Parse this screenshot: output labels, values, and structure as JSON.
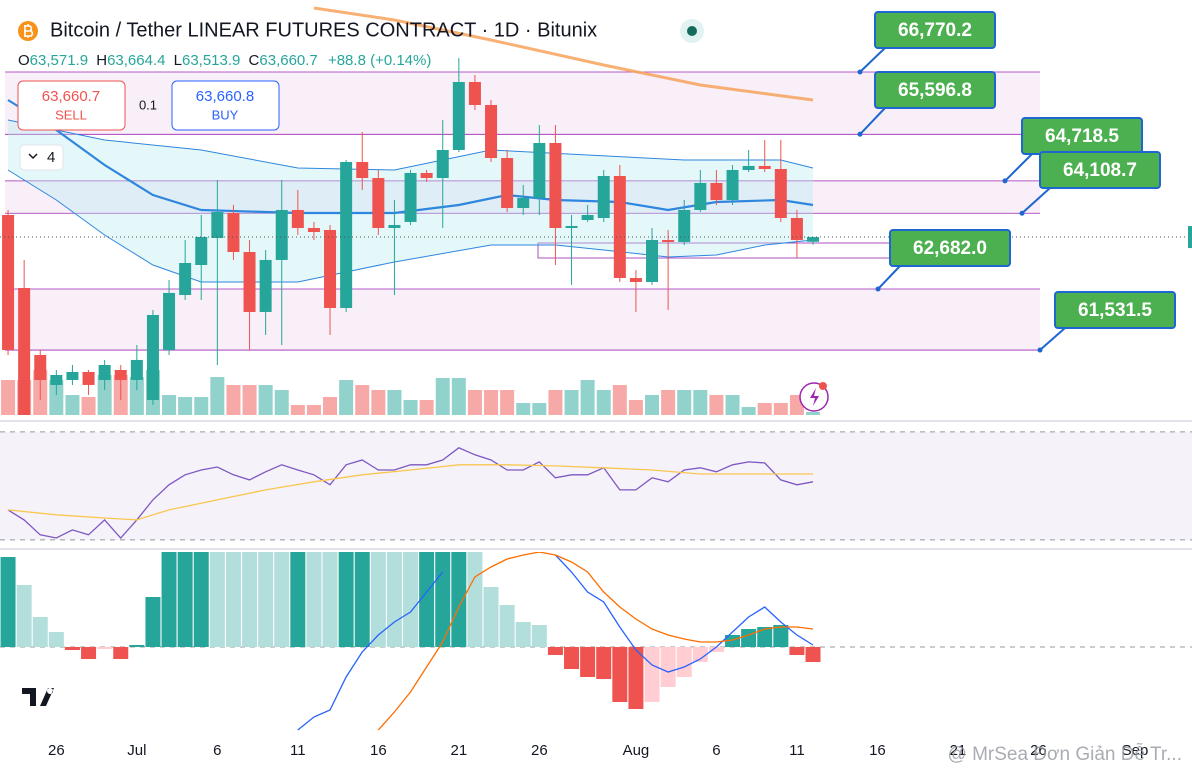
{
  "chart_data": [
    {
      "type": "candlestick",
      "title": "Bitcoin / Tether LINEAR FUTURES CONTRACT · 1D · Bitunix",
      "ohlc_labels": [
        "O",
        "H",
        "L",
        "C"
      ],
      "ohlc_value_labels": [
        "63,571.9",
        "63,664.4",
        "63,513.9",
        "63,660.7"
      ],
      "change_label": "+88.8 (+0.14%)",
      "order_panel": {
        "sell_price": "63,660.7",
        "sell": "SELL",
        "quantity": "0.1",
        "buy_price": "63,660.8",
        "buy": "BUY"
      },
      "indicator_count": 4,
      "up_color": "#26a69a",
      "down_color": "#ef5350",
      "xlim": [
        -0.5,
        73.54
      ],
      "ylim": [
        60308,
        68127
      ],
      "xticks": [
        {
          "value": 3,
          "label": "26"
        },
        {
          "value": 8,
          "label": "Jul"
        },
        {
          "value": 13,
          "label": "6"
        },
        {
          "value": 18,
          "label": "11"
        },
        {
          "value": 23,
          "label": "16"
        },
        {
          "value": 28,
          "label": "21"
        },
        {
          "value": 33,
          "label": "26"
        },
        {
          "value": 39,
          "label": "Aug"
        },
        {
          "value": 44,
          "label": "6"
        },
        {
          "value": 49,
          "label": "11"
        },
        {
          "value": 54,
          "label": "16"
        },
        {
          "value": 59,
          "label": "21"
        },
        {
          "value": 64,
          "label": "26"
        },
        {
          "value": 70,
          "label": "Sep"
        }
      ],
      "open": [
        64076,
        62701,
        61439,
        60874,
        60968,
        61119,
        60968,
        61156,
        60968,
        60591,
        61533,
        62569,
        63134,
        63643,
        64114,
        63379,
        62249,
        63229,
        64171,
        63831,
        63794,
        62324,
        65075,
        64773,
        63831,
        63945,
        64868,
        64773,
        65301,
        66582,
        66149,
        65150,
        64208,
        64397,
        65433,
        63831,
        63982,
        64020,
        64811,
        62889,
        62814,
        63605,
        63568,
        64171,
        64679,
        64359,
        64924,
        65000,
        64943,
        64020,
        63571.9
      ],
      "high": [
        64171,
        63229,
        61533,
        61156,
        61250,
        61156,
        61345,
        61250,
        61627,
        62287,
        62852,
        63605,
        64076,
        64736,
        64265,
        63605,
        63417,
        64736,
        64547,
        63945,
        63888,
        65113,
        65640,
        64924,
        64359,
        64924,
        64924,
        65866,
        67034,
        66714,
        66243,
        65301,
        64642,
        65772,
        65772,
        64076,
        64265,
        64924,
        65018,
        63040,
        63831,
        63794,
        64359,
        64924,
        64924,
        65018,
        65301,
        65489,
        65489,
        64171,
        63664.4
      ],
      "low": [
        61439,
        60308,
        60591,
        60685,
        60874,
        60685,
        60779,
        60591,
        60779,
        60497,
        61439,
        62475,
        62475,
        61250,
        63229,
        61533,
        61816,
        61627,
        63700,
        63605,
        61816,
        62249,
        64547,
        63700,
        62569,
        63888,
        64698,
        63831,
        65263,
        66055,
        65075,
        64133,
        64076,
        64076,
        63134,
        62758,
        63945,
        63945,
        62814,
        62249,
        62758,
        62287,
        63511,
        64133,
        64265,
        64265,
        64887,
        64887,
        63945,
        63266,
        63513.9
      ],
      "close": [
        61533,
        60308,
        60968,
        61062,
        61119,
        60874,
        61250,
        60968,
        61345,
        62192,
        62607,
        63172,
        63662,
        64133,
        63379,
        62249,
        63229,
        64171,
        63831,
        63756,
        62324,
        65075,
        64773,
        63831,
        63888,
        64868,
        64773,
        65301,
        66582,
        66149,
        65150,
        64208,
        64397,
        65433,
        63831,
        63869,
        64076,
        64811,
        62889,
        62814,
        63605,
        63568,
        64171,
        64679,
        64359,
        64924,
        65000,
        64943,
        64020,
        63605,
        63660.7
      ],
      "volume": {
        "values": [
          35,
          35,
          45,
          35,
          20,
          18,
          40,
          40,
          38,
          45,
          20,
          18,
          18,
          38,
          30,
          30,
          30,
          25,
          10,
          10,
          18,
          35,
          30,
          25,
          25,
          15,
          15,
          37,
          37,
          25,
          25,
          25,
          12,
          12,
          25,
          25,
          35,
          25,
          30,
          15,
          20,
          25,
          25,
          25,
          20,
          20,
          8,
          12,
          12,
          20,
          3
        ],
        "lim": [
          0,
          100
        ]
      },
      "overlays": [
        {
          "x": [
            0,
            6,
            12,
            18,
            24,
            27,
            30,
            36,
            42,
            48,
            50
          ],
          "values": [
            65866,
            65489,
            65301,
            64962,
            64924,
            65113,
            65301,
            65207,
            65113,
            65113,
            64962
          ],
          "color": "#2e86de"
        },
        {
          "x": [
            0,
            3,
            6,
            9,
            12,
            18,
            24,
            28,
            31,
            34,
            38,
            41,
            44,
            48,
            50
          ],
          "values": [
            66243,
            65678,
            65018,
            64453,
            64171,
            64114,
            64114,
            64265,
            64453,
            64359,
            64321,
            64171,
            64321,
            64359,
            64265
          ],
          "color": "#2e86de"
        },
        {
          "x": [
            0,
            3,
            6,
            9,
            12,
            18,
            24,
            30,
            34,
            37,
            41,
            44,
            47,
            50
          ],
          "values": [
            64924,
            64359,
            63700,
            63134,
            62814,
            62814,
            63191,
            63511,
            63511,
            63417,
            63285,
            63323,
            63511,
            63605
          ],
          "color": "#2e86de"
        },
        {
          "x": [
            19,
            24,
            30,
            37,
            43,
            50
          ],
          "values": [
            67976,
            67750,
            67373,
            66902,
            66525,
            66243
          ],
          "color": "#f7a25a"
        }
      ],
      "levels": [
        {
          "value": 66770.2,
          "label": "66,770.2"
        },
        {
          "value": 65596.8,
          "label": "65,596.8"
        },
        {
          "value": 64718.5,
          "label": "64,718.5"
        },
        {
          "value": 64108.7,
          "label": "64,108.7"
        },
        {
          "value": 62682.0,
          "label": "62,682.0"
        },
        {
          "value": 61531.5,
          "label": "61,531.5"
        }
      ],
      "level_color": "#4caf50"
    },
    {
      "type": "line",
      "xlim": [
        -0.5,
        73.54
      ],
      "ylim": [
        27,
        74.4
      ],
      "levels": [
        70,
        30
      ],
      "series": [
        {
          "color": "#7e57c2",
          "values": [
            41.1,
            37.4,
            31.9,
            30.7,
            33.7,
            31.9,
            37.4,
            30.7,
            37.4,
            44.8,
            50.4,
            54.1,
            55.9,
            57.0,
            54.1,
            52.2,
            55.2,
            57.8,
            55.9,
            54.1,
            50.4,
            57.8,
            59.6,
            55.9,
            55.9,
            57.8,
            57.8,
            59.6,
            64.1,
            61.5,
            59.6,
            55.9,
            55.9,
            58.9,
            53.0,
            54.1,
            54.1,
            56.7,
            48.5,
            48.5,
            53.0,
            51.5,
            55.9,
            56.7,
            55.2,
            57.8,
            58.9,
            58.5,
            52.2,
            50.4,
            51.5
          ]
        },
        {
          "color": "#f9c74f",
          "x": [
            0,
            3,
            6,
            8,
            10,
            13,
            16,
            19,
            22,
            25,
            28,
            31,
            34,
            37,
            40,
            43,
            46,
            50
          ],
          "values": [
            41.1,
            39.3,
            38.1,
            37.4,
            41.1,
            44.8,
            48.5,
            51.5,
            54.1,
            55.9,
            57.8,
            57.8,
            57.4,
            56.7,
            55.9,
            54.4,
            54.4,
            54.4
          ]
        }
      ]
    },
    {
      "type": "macd",
      "xlim": [
        -0.5,
        73.54
      ],
      "ylim": [
        -88,
        95
      ],
      "histogram": {
        "values": [
          90,
          62,
          30,
          15,
          -3,
          -12,
          -2,
          -12,
          2,
          50,
          100,
          110,
          115,
          112,
          108,
          104,
          100,
          98,
          102,
          100,
          98,
          110,
          115,
          112,
          108,
          104,
          106,
          112,
          120,
          95,
          60,
          42,
          25,
          22,
          -8,
          -22,
          -30,
          -32,
          -55,
          -62,
          -55,
          -40,
          -30,
          -15,
          -5,
          12,
          18,
          20,
          22,
          -8,
          -15
        ],
        "colors": {
          "up_rising": "#26a69a",
          "up_falling": "#b2dfdb",
          "down_falling": "#ef5350",
          "down_rising": "#ffcdd2"
        }
      },
      "series": [
        {
          "color": "#2962ff",
          "values": [
            null,
            null,
            null,
            null,
            null,
            null,
            null,
            null,
            null,
            null,
            null,
            null,
            null,
            null,
            null,
            null,
            null,
            null,
            -83,
            -70,
            -63,
            -30,
            -5,
            12,
            25,
            35,
            55,
            75,
            null,
            null,
            null,
            null,
            null,
            null,
            92,
            75,
            55,
            45,
            20,
            -3,
            -18,
            -25,
            -20,
            -12,
            0,
            15,
            30,
            40,
            25,
            12,
            2
          ]
        },
        {
          "color": "#ff6d00",
          "values": [
            null,
            null,
            null,
            null,
            null,
            null,
            null,
            null,
            null,
            null,
            null,
            null,
            null,
            null,
            null,
            null,
            null,
            null,
            null,
            null,
            null,
            null,
            null,
            -83,
            -65,
            -45,
            -20,
            5,
            40,
            70,
            80,
            88,
            92,
            95,
            92,
            85,
            75,
            55,
            40,
            28,
            18,
            12,
            8,
            5,
            5,
            7,
            12,
            18,
            20,
            20,
            18
          ]
        }
      ]
    }
  ],
  "watermark": "@ MrSea Đơn Giản Dễ Tr..."
}
